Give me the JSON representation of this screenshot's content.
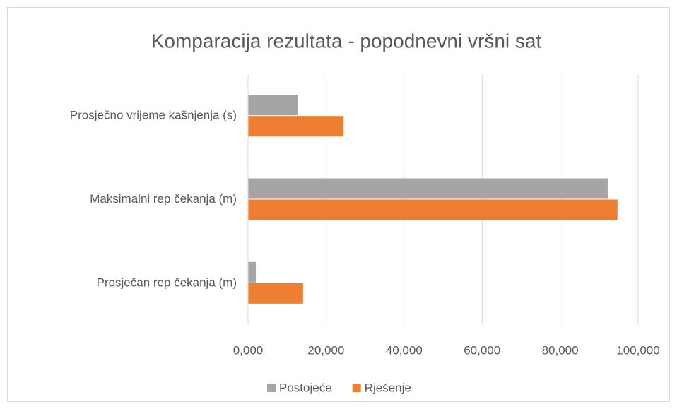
{
  "chart_data": {
    "type": "hbar",
    "title": "Komparacija rezultata - popodnevni vršni sat",
    "categories": [
      "Prosječno vrijeme kašnjenja (s)",
      "Maksimalni rep čekanja (m)",
      "Prosječan rep čekanja (m)"
    ],
    "series": [
      {
        "name": "Postojeće",
        "color": "#a5a5a5",
        "values": [
          12.7,
          92.2,
          2.0
        ]
      },
      {
        "name": "Rješenje",
        "color": "#ed7d31",
        "values": [
          24.5,
          94.7,
          14.1
        ]
      }
    ],
    "xlim": [
      0,
      100
    ],
    "xticks": [
      {
        "value": 0,
        "label": "0,000"
      },
      {
        "value": 20,
        "label": "20,000"
      },
      {
        "value": 40,
        "label": "40,000"
      },
      {
        "value": 60,
        "label": "60,000"
      },
      {
        "value": 80,
        "label": "80,000"
      },
      {
        "value": 100,
        "label": "100,000"
      }
    ],
    "grid": true,
    "legend": "bottom"
  }
}
